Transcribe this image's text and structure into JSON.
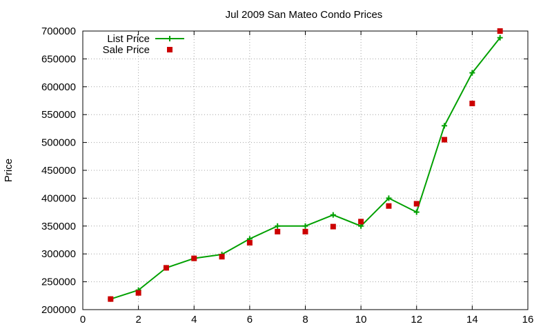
{
  "chart_data": {
    "type": "line",
    "title": "Jul 2009 San Mateo Condo Prices",
    "xlabel": "",
    "ylabel": "Price",
    "xlim": [
      0,
      16
    ],
    "ylim": [
      200000,
      700000
    ],
    "xticks": [
      0,
      2,
      4,
      6,
      8,
      10,
      12,
      14,
      16
    ],
    "yticks": [
      200000,
      250000,
      300000,
      350000,
      400000,
      450000,
      500000,
      550000,
      600000,
      650000,
      700000
    ],
    "grid": true,
    "legend_position": "top-left",
    "series": [
      {
        "name": "List Price",
        "style": "line-points",
        "color": "#00a000",
        "marker": "plus",
        "x": [
          1,
          2,
          3,
          4,
          5,
          6,
          7,
          8,
          9,
          10,
          11,
          12,
          13,
          14,
          15
        ],
        "y": [
          219000,
          235000,
          275000,
          292000,
          299000,
          327000,
          350000,
          350000,
          370000,
          350000,
          400000,
          375000,
          530000,
          625000,
          688000
        ]
      },
      {
        "name": "Sale Price",
        "style": "points",
        "color": "#cc0000",
        "marker": "square",
        "x": [
          1,
          2,
          3,
          4,
          5,
          6,
          7,
          8,
          9,
          10,
          11,
          12,
          13,
          14,
          15
        ],
        "y": [
          219000,
          230000,
          275000,
          292000,
          295000,
          320000,
          340000,
          340000,
          349000,
          358000,
          386000,
          390000,
          505000,
          570000,
          700000
        ]
      }
    ]
  }
}
